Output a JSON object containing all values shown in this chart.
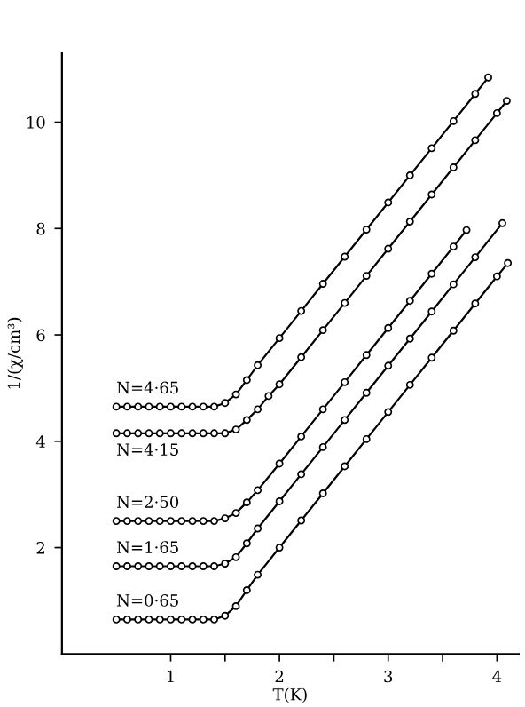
{
  "chart_data": {
    "type": "line",
    "xlabel": "T(K)",
    "ylabel": "1/(χ/cm³)",
    "xlim": [
      0,
      4.2
    ],
    "ylim": [
      0,
      11.3
    ],
    "xticks": [
      1,
      {
        "value": 1.5,
        "label": null
      },
      2,
      {
        "value": 2.5,
        "label": null
      },
      3,
      {
        "value": 3.5,
        "label": null
      },
      4
    ],
    "yticks": [
      2,
      4,
      6,
      8,
      10
    ],
    "marker": "circle",
    "line_style": "solid",
    "grid": false,
    "legend": false,
    "series": [
      {
        "name": "N=4·65",
        "color": "#000000",
        "x": [
          0.5,
          0.6,
          0.7,
          0.8,
          0.9,
          1.0,
          1.1,
          1.2,
          1.3,
          1.4,
          1.5,
          1.6,
          1.7,
          1.8,
          2.0,
          2.2,
          2.4,
          2.6,
          2.8,
          3.0,
          3.2,
          3.4,
          3.6,
          3.8,
          3.92
        ],
        "values": [
          4.65,
          4.65,
          4.65,
          4.65,
          4.65,
          4.65,
          4.65,
          4.65,
          4.65,
          4.65,
          4.72,
          4.88,
          5.15,
          5.43,
          5.94,
          6.45,
          6.96,
          7.47,
          7.98,
          8.49,
          9.0,
          9.51,
          10.02,
          10.53,
          10.84
        ]
      },
      {
        "name": "N=4·15",
        "color": "#000000",
        "x": [
          0.5,
          0.6,
          0.7,
          0.8,
          0.9,
          1.0,
          1.1,
          1.2,
          1.3,
          1.4,
          1.5,
          1.6,
          1.7,
          1.8,
          1.9,
          2.0,
          2.2,
          2.4,
          2.6,
          2.8,
          3.0,
          3.2,
          3.4,
          3.6,
          3.8,
          4.0,
          4.09
        ],
        "values": [
          4.15,
          4.15,
          4.15,
          4.15,
          4.15,
          4.15,
          4.15,
          4.15,
          4.15,
          4.15,
          4.15,
          4.22,
          4.4,
          4.6,
          4.85,
          5.07,
          5.58,
          6.09,
          6.6,
          7.11,
          7.62,
          8.13,
          8.64,
          9.15,
          9.66,
          10.17,
          10.4
        ]
      },
      {
        "name": "N=2·50",
        "color": "#000000",
        "x": [
          0.5,
          0.6,
          0.7,
          0.8,
          0.9,
          1.0,
          1.1,
          1.2,
          1.3,
          1.4,
          1.5,
          1.6,
          1.7,
          1.8,
          2.0,
          2.2,
          2.4,
          2.6,
          2.8,
          3.0,
          3.2,
          3.4,
          3.6,
          3.72
        ],
        "values": [
          2.5,
          2.5,
          2.5,
          2.5,
          2.5,
          2.5,
          2.5,
          2.5,
          2.5,
          2.5,
          2.55,
          2.65,
          2.85,
          3.08,
          3.58,
          4.09,
          4.6,
          5.11,
          5.62,
          6.13,
          6.64,
          7.15,
          7.66,
          7.97
        ]
      },
      {
        "name": "N=1·65",
        "color": "#000000",
        "x": [
          0.5,
          0.6,
          0.7,
          0.8,
          0.9,
          1.0,
          1.1,
          1.2,
          1.3,
          1.4,
          1.5,
          1.6,
          1.7,
          1.8,
          2.0,
          2.2,
          2.4,
          2.6,
          2.8,
          3.0,
          3.2,
          3.4,
          3.6,
          3.8,
          4.05
        ],
        "values": [
          1.65,
          1.65,
          1.65,
          1.65,
          1.65,
          1.65,
          1.65,
          1.65,
          1.65,
          1.65,
          1.7,
          1.82,
          2.08,
          2.36,
          2.87,
          3.38,
          3.89,
          4.4,
          4.91,
          5.42,
          5.93,
          6.44,
          6.95,
          7.46,
          8.1
        ]
      },
      {
        "name": "N=0·65",
        "color": "#000000",
        "x": [
          0.5,
          0.6,
          0.7,
          0.8,
          0.9,
          1.0,
          1.1,
          1.2,
          1.3,
          1.4,
          1.5,
          1.6,
          1.7,
          1.8,
          2.0,
          2.2,
          2.4,
          2.6,
          2.8,
          3.0,
          3.2,
          3.4,
          3.6,
          3.8,
          4.0,
          4.1
        ],
        "values": [
          0.65,
          0.65,
          0.65,
          0.65,
          0.65,
          0.65,
          0.65,
          0.65,
          0.65,
          0.65,
          0.72,
          0.9,
          1.2,
          1.49,
          2.0,
          2.51,
          3.02,
          3.53,
          4.04,
          4.55,
          5.06,
          5.57,
          6.08,
          6.59,
          7.1,
          7.35
        ]
      }
    ]
  }
}
